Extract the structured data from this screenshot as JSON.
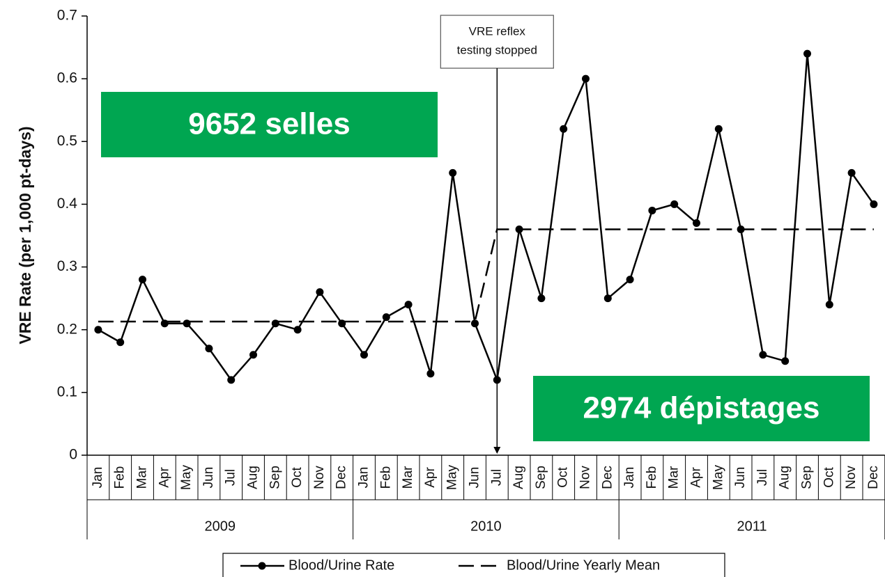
{
  "chart_data": {
    "type": "line",
    "y_label": "VRE Rate (per 1,000 pt-days)",
    "categories": [
      "Jan",
      "Feb",
      "Mar",
      "Apr",
      "May",
      "Jun",
      "Jul",
      "Aug",
      "Sep",
      "Oct",
      "Nov",
      "Dec",
      "Jan",
      "Feb",
      "Mar",
      "Apr",
      "May",
      "Jun",
      "Jul",
      "Aug",
      "Sep",
      "Oct",
      "Nov",
      "Dec",
      "Jan",
      "Feb",
      "Mar",
      "Apr",
      "May",
      "Jun",
      "Jul",
      "Aug",
      "Sep",
      "Oct",
      "Nov",
      "Dec"
    ],
    "years": [
      "2009",
      "2010",
      "2011"
    ],
    "series": [
      {
        "name": "Blood/Urine Rate",
        "color": "#000000",
        "style": "solid-markers",
        "values": [
          0.2,
          0.18,
          0.28,
          0.21,
          0.21,
          0.17,
          0.12,
          0.16,
          0.21,
          0.2,
          0.26,
          0.21,
          0.16,
          0.22,
          0.24,
          0.13,
          0.45,
          0.21,
          0.12,
          0.36,
          0.25,
          0.52,
          0.6,
          0.25,
          0.28,
          0.39,
          0.4,
          0.37,
          0.52,
          0.36,
          0.16,
          0.15,
          0.64,
          0.24,
          0.45,
          0.4
        ]
      },
      {
        "name": "Blood/Urine Yearly Mean",
        "color": "#000000",
        "style": "dashed",
        "values": [
          0.213,
          0.213,
          0.213,
          0.213,
          0.213,
          0.213,
          0.213,
          0.213,
          0.213,
          0.213,
          0.213,
          0.213,
          0.213,
          0.213,
          0.213,
          0.213,
          0.213,
          0.213,
          0.36,
          0.36,
          0.36,
          0.36,
          0.36,
          0.36,
          0.36,
          0.36,
          0.36,
          0.36,
          0.36,
          0.36,
          0.36,
          0.36,
          0.36,
          0.36,
          0.36,
          0.36
        ]
      }
    ],
    "ylim": [
      0,
      0.7
    ],
    "yticks": [
      0,
      0.1,
      0.2,
      0.3,
      0.4,
      0.5,
      0.6,
      0.7
    ],
    "annotation": {
      "lines": [
        "VRE reflex",
        "testing stopped"
      ],
      "category_index": 18
    },
    "callouts": [
      "9652 selles",
      "2974 dépistages"
    ],
    "callout_color": "#00a651"
  }
}
